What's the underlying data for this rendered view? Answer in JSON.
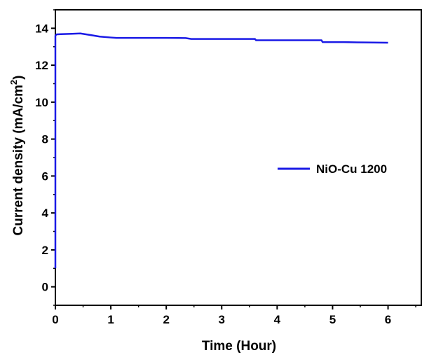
{
  "chart_data": {
    "type": "line",
    "xlabel": "Time (Hour)",
    "ylabel": "Current density (mA/cm",
    "ylabel_sup": "2",
    "ylabel_suffix": ")",
    "xlim": [
      0,
      6.6
    ],
    "ylim": [
      -1,
      15
    ],
    "xticks": [
      0,
      1,
      2,
      3,
      4,
      5,
      6
    ],
    "yticks": [
      0,
      2,
      4,
      6,
      8,
      10,
      12,
      14
    ],
    "grid": false,
    "legend_position": "right",
    "series": [
      {
        "name": "NiO-Cu 1200",
        "color": "#1a1ae6",
        "x": [
          0,
          0.0,
          0.02,
          0.1,
          0.3,
          0.45,
          0.6,
          0.8,
          1.0,
          1.1,
          1.5,
          2.0,
          2.35,
          2.45,
          3.0,
          3.6,
          3.62,
          4.0,
          4.8,
          4.82,
          5.2,
          5.6,
          6.0
        ],
        "values": [
          1.0,
          13.6,
          13.67,
          13.68,
          13.7,
          13.72,
          13.65,
          13.55,
          13.5,
          13.48,
          13.48,
          13.48,
          13.47,
          13.42,
          13.42,
          13.42,
          13.35,
          13.35,
          13.35,
          13.25,
          13.25,
          13.23,
          13.22
        ]
      }
    ]
  }
}
